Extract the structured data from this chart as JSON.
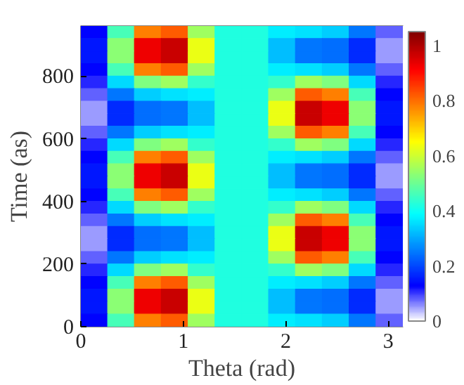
{
  "chart_data": {
    "type": "heatmap",
    "xlabel": "Theta (rad)",
    "ylabel": "Time (as)",
    "x": [
      0.131,
      0.393,
      0.654,
      0.916,
      1.178,
      1.44,
      1.702,
      1.963,
      2.225,
      2.487,
      2.749,
      3.011
    ],
    "y": [
      940,
      900,
      860,
      820,
      780,
      740,
      700,
      660,
      620,
      580,
      540,
      500,
      460,
      420,
      380,
      340,
      300,
      260,
      220,
      180,
      140,
      100,
      60,
      20
    ],
    "xlim": [
      0,
      3.1416
    ],
    "xticks": [
      0,
      1,
      2,
      3
    ],
    "ylim": [
      0,
      960
    ],
    "yticks": [
      0,
      200,
      400,
      600,
      800
    ],
    "clim": [
      0,
      1.05
    ],
    "cticks": [
      0,
      0.2,
      0.4,
      0.6,
      0.8,
      1
    ],
    "cells": [
      [
        0.13,
        0.46,
        0.78,
        0.82,
        0.55,
        0.42,
        0.42,
        0.37,
        0.36,
        0.34,
        0.25,
        0.08
      ],
      [
        0.15,
        0.53,
        0.93,
        0.97,
        0.63,
        0.42,
        0.42,
        0.32,
        0.25,
        0.24,
        0.17,
        0.05
      ],
      [
        0.15,
        0.53,
        0.93,
        0.97,
        0.63,
        0.42,
        0.42,
        0.32,
        0.25,
        0.24,
        0.17,
        0.05
      ],
      [
        0.13,
        0.46,
        0.78,
        0.82,
        0.55,
        0.42,
        0.42,
        0.37,
        0.36,
        0.34,
        0.25,
        0.08
      ],
      [
        0.11,
        0.35,
        0.52,
        0.55,
        0.44,
        0.42,
        0.42,
        0.44,
        0.55,
        0.52,
        0.35,
        0.11
      ],
      [
        0.08,
        0.25,
        0.34,
        0.36,
        0.37,
        0.42,
        0.42,
        0.55,
        0.82,
        0.78,
        0.46,
        0.13
      ],
      [
        0.05,
        0.17,
        0.24,
        0.25,
        0.32,
        0.42,
        0.42,
        0.63,
        0.97,
        0.93,
        0.53,
        0.15
      ],
      [
        0.05,
        0.17,
        0.24,
        0.25,
        0.32,
        0.42,
        0.42,
        0.63,
        0.97,
        0.93,
        0.53,
        0.15
      ],
      [
        0.08,
        0.25,
        0.34,
        0.36,
        0.37,
        0.42,
        0.42,
        0.55,
        0.82,
        0.78,
        0.46,
        0.13
      ],
      [
        0.11,
        0.35,
        0.52,
        0.55,
        0.44,
        0.42,
        0.42,
        0.44,
        0.55,
        0.52,
        0.35,
        0.11
      ],
      [
        0.13,
        0.46,
        0.78,
        0.82,
        0.55,
        0.42,
        0.42,
        0.37,
        0.36,
        0.34,
        0.25,
        0.08
      ],
      [
        0.15,
        0.53,
        0.93,
        0.97,
        0.63,
        0.42,
        0.42,
        0.32,
        0.25,
        0.24,
        0.17,
        0.05
      ],
      [
        0.15,
        0.53,
        0.93,
        0.97,
        0.63,
        0.42,
        0.42,
        0.32,
        0.25,
        0.24,
        0.17,
        0.05
      ],
      [
        0.13,
        0.46,
        0.78,
        0.82,
        0.55,
        0.42,
        0.42,
        0.37,
        0.36,
        0.34,
        0.25,
        0.08
      ],
      [
        0.11,
        0.35,
        0.52,
        0.55,
        0.44,
        0.42,
        0.42,
        0.44,
        0.55,
        0.52,
        0.35,
        0.11
      ],
      [
        0.08,
        0.25,
        0.34,
        0.36,
        0.37,
        0.42,
        0.42,
        0.55,
        0.82,
        0.78,
        0.46,
        0.13
      ],
      [
        0.05,
        0.17,
        0.24,
        0.25,
        0.32,
        0.42,
        0.42,
        0.63,
        0.97,
        0.93,
        0.53,
        0.15
      ],
      [
        0.05,
        0.17,
        0.24,
        0.25,
        0.32,
        0.42,
        0.42,
        0.63,
        0.97,
        0.93,
        0.53,
        0.15
      ],
      [
        0.08,
        0.25,
        0.34,
        0.36,
        0.37,
        0.42,
        0.42,
        0.55,
        0.82,
        0.78,
        0.46,
        0.13
      ],
      [
        0.11,
        0.35,
        0.52,
        0.55,
        0.44,
        0.42,
        0.42,
        0.44,
        0.55,
        0.52,
        0.35,
        0.11
      ],
      [
        0.13,
        0.46,
        0.78,
        0.82,
        0.55,
        0.42,
        0.42,
        0.37,
        0.36,
        0.34,
        0.25,
        0.08
      ],
      [
        0.15,
        0.53,
        0.93,
        0.97,
        0.63,
        0.42,
        0.42,
        0.32,
        0.25,
        0.24,
        0.17,
        0.05
      ],
      [
        0.15,
        0.53,
        0.93,
        0.97,
        0.63,
        0.42,
        0.42,
        0.32,
        0.25,
        0.24,
        0.17,
        0.05
      ],
      [
        0.13,
        0.46,
        0.78,
        0.82,
        0.55,
        0.42,
        0.42,
        0.37,
        0.36,
        0.34,
        0.25,
        0.08
      ]
    ]
  }
}
